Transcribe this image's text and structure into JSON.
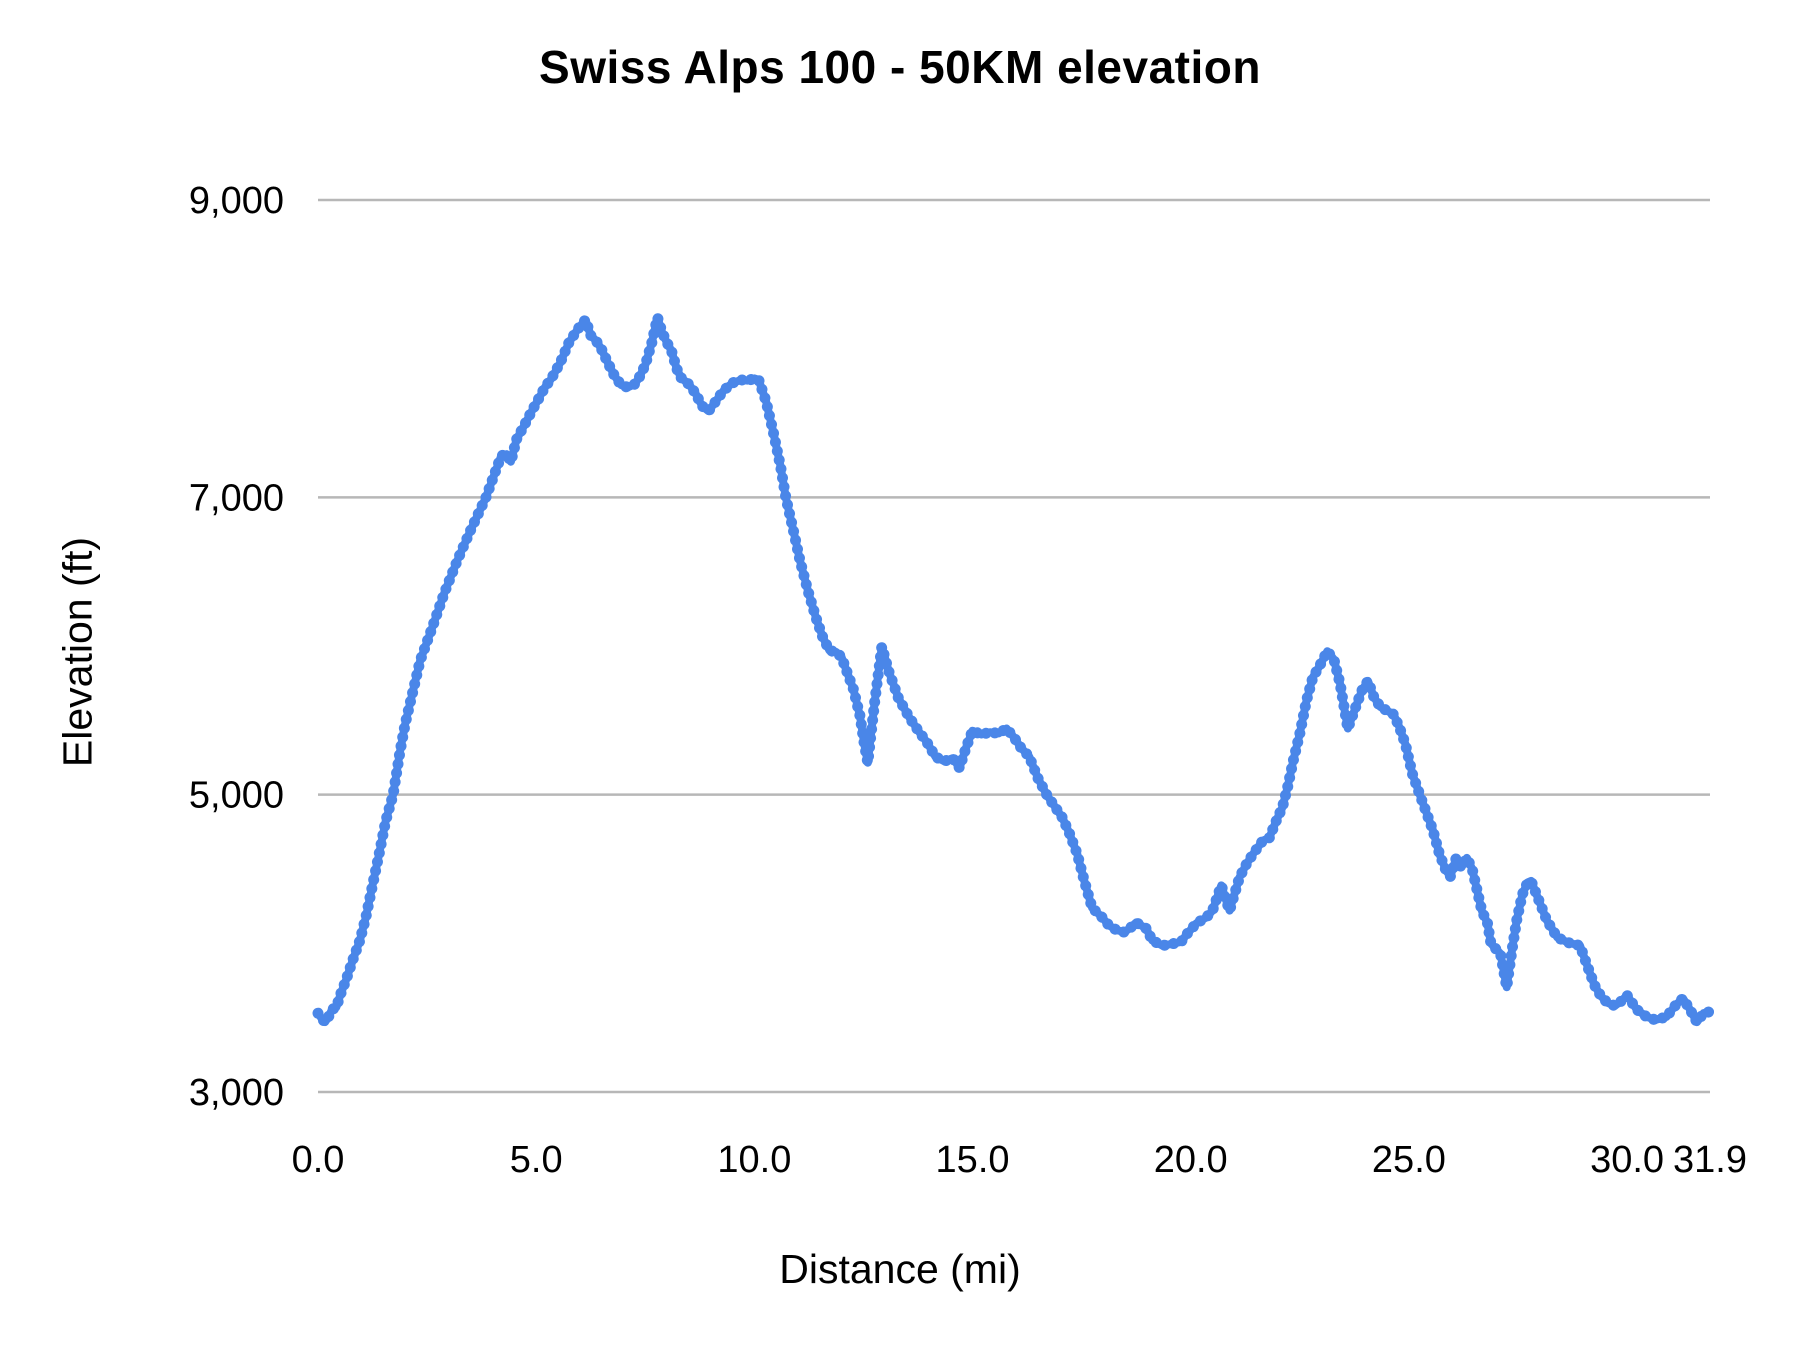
{
  "chart_data": {
    "type": "line",
    "title": "Swiss Alps 100 - 50KM elevation",
    "xlabel": "Distance (mi)",
    "ylabel": "Elevation (ft)",
    "x_range": [
      0,
      31.9
    ],
    "y_range": [
      3000,
      9000
    ],
    "grid": "horizontal-only",
    "legend": "none",
    "line_color": "#4a86e8",
    "gridline_color": "#b7b7b7",
    "x_ticks": [
      {
        "value": 0.0,
        "label": "0.0"
      },
      {
        "value": 5.0,
        "label": "5.0"
      },
      {
        "value": 10.0,
        "label": "10.0"
      },
      {
        "value": 15.0,
        "label": "15.0"
      },
      {
        "value": 20.0,
        "label": "20.0"
      },
      {
        "value": 25.0,
        "label": "25.0"
      },
      {
        "value": 30.0,
        "label": "30.0"
      },
      {
        "value": 31.9,
        "label": "31.9"
      }
    ],
    "y_ticks": [
      {
        "value": 3000,
        "label": "3,000"
      },
      {
        "value": 5000,
        "label": "5,000"
      },
      {
        "value": 7000,
        "label": "7,000"
      },
      {
        "value": 9000,
        "label": "9,000"
      }
    ],
    "series": [
      {
        "name": "Elevation",
        "points": [
          [
            0.0,
            3530
          ],
          [
            0.08,
            3495
          ],
          [
            0.16,
            3470
          ],
          [
            0.24,
            3505
          ],
          [
            0.32,
            3555
          ],
          [
            0.42,
            3570
          ],
          [
            0.52,
            3660
          ],
          [
            0.65,
            3760
          ],
          [
            0.8,
            3890
          ],
          [
            0.96,
            4020
          ],
          [
            1.1,
            4180
          ],
          [
            1.25,
            4390
          ],
          [
            1.4,
            4600
          ],
          [
            1.55,
            4820
          ],
          [
            1.72,
            5000
          ],
          [
            1.88,
            5290
          ],
          [
            2.0,
            5480
          ],
          [
            2.18,
            5700
          ],
          [
            2.34,
            5900
          ],
          [
            2.6,
            6110
          ],
          [
            2.9,
            6360
          ],
          [
            3.2,
            6580
          ],
          [
            3.5,
            6780
          ],
          [
            3.85,
            7000
          ],
          [
            4.05,
            7160
          ],
          [
            4.2,
            7280
          ],
          [
            4.32,
            7290
          ],
          [
            4.42,
            7240
          ],
          [
            4.55,
            7390
          ],
          [
            4.7,
            7470
          ],
          [
            4.9,
            7580
          ],
          [
            5.05,
            7660
          ],
          [
            5.2,
            7740
          ],
          [
            5.35,
            7800
          ],
          [
            5.55,
            7905
          ],
          [
            5.75,
            8040
          ],
          [
            5.95,
            8130
          ],
          [
            6.13,
            8195
          ],
          [
            6.25,
            8090
          ],
          [
            6.38,
            8050
          ],
          [
            6.5,
            7995
          ],
          [
            6.65,
            7900
          ],
          [
            6.8,
            7815
          ],
          [
            6.95,
            7755
          ],
          [
            7.1,
            7740
          ],
          [
            7.25,
            7760
          ],
          [
            7.35,
            7800
          ],
          [
            7.5,
            7890
          ],
          [
            7.65,
            8040
          ],
          [
            7.78,
            8210
          ],
          [
            7.88,
            8115
          ],
          [
            7.98,
            8050
          ],
          [
            8.1,
            7985
          ],
          [
            8.22,
            7865
          ],
          [
            8.32,
            7805
          ],
          [
            8.5,
            7760
          ],
          [
            8.65,
            7700
          ],
          [
            8.8,
            7615
          ],
          [
            8.95,
            7580
          ],
          [
            9.1,
            7640
          ],
          [
            9.3,
            7720
          ],
          [
            9.5,
            7770
          ],
          [
            9.7,
            7790
          ],
          [
            9.85,
            7785
          ],
          [
            10.0,
            7800
          ],
          [
            10.1,
            7790
          ],
          [
            10.27,
            7645
          ],
          [
            10.43,
            7445
          ],
          [
            10.6,
            7210
          ],
          [
            10.72,
            7000
          ],
          [
            10.9,
            6770
          ],
          [
            11.05,
            6570
          ],
          [
            11.22,
            6380
          ],
          [
            11.4,
            6200
          ],
          [
            11.56,
            6065
          ],
          [
            11.72,
            5970
          ],
          [
            11.87,
            5960
          ],
          [
            12.0,
            5925
          ],
          [
            12.13,
            5820
          ],
          [
            12.27,
            5710
          ],
          [
            12.42,
            5530
          ],
          [
            12.52,
            5340
          ],
          [
            12.6,
            5215
          ],
          [
            12.76,
            5630
          ],
          [
            12.92,
            5995
          ],
          [
            13.08,
            5830
          ],
          [
            13.3,
            5650
          ],
          [
            13.55,
            5520
          ],
          [
            13.78,
            5420
          ],
          [
            13.95,
            5355
          ],
          [
            14.15,
            5255
          ],
          [
            14.35,
            5225
          ],
          [
            14.55,
            5245
          ],
          [
            14.7,
            5180
          ],
          [
            14.85,
            5315
          ],
          [
            15.0,
            5430
          ],
          [
            15.2,
            5405
          ],
          [
            15.4,
            5420
          ],
          [
            15.6,
            5412
          ],
          [
            15.78,
            5445
          ],
          [
            15.95,
            5385
          ],
          [
            16.1,
            5320
          ],
          [
            16.3,
            5255
          ],
          [
            16.5,
            5110
          ],
          [
            16.7,
            5000
          ],
          [
            17.06,
            4845
          ],
          [
            17.22,
            4740
          ],
          [
            17.4,
            4600
          ],
          [
            17.56,
            4420
          ],
          [
            17.74,
            4240
          ],
          [
            17.97,
            4175
          ],
          [
            18.13,
            4120
          ],
          [
            18.3,
            4090
          ],
          [
            18.48,
            4075
          ],
          [
            18.62,
            4105
          ],
          [
            18.75,
            4140
          ],
          [
            18.98,
            4100
          ],
          [
            19.12,
            4020
          ],
          [
            19.35,
            3985
          ],
          [
            19.55,
            3995
          ],
          [
            19.78,
            4010
          ],
          [
            19.92,
            4065
          ],
          [
            20.13,
            4135
          ],
          [
            20.36,
            4175
          ],
          [
            20.5,
            4220
          ],
          [
            20.63,
            4330
          ],
          [
            20.7,
            4390
          ],
          [
            20.8,
            4300
          ],
          [
            20.89,
            4220
          ],
          [
            21.0,
            4330
          ],
          [
            21.12,
            4445
          ],
          [
            21.28,
            4535
          ],
          [
            21.45,
            4610
          ],
          [
            21.65,
            4690
          ],
          [
            21.8,
            4710
          ],
          [
            21.96,
            4825
          ],
          [
            22.1,
            4915
          ],
          [
            22.22,
            5050
          ],
          [
            22.35,
            5230
          ],
          [
            22.5,
            5410
          ],
          [
            22.65,
            5630
          ],
          [
            22.8,
            5790
          ],
          [
            22.95,
            5865
          ],
          [
            23.13,
            5965
          ],
          [
            23.28,
            5910
          ],
          [
            23.42,
            5750
          ],
          [
            23.6,
            5445
          ],
          [
            23.75,
            5565
          ],
          [
            23.92,
            5700
          ],
          [
            24.06,
            5765
          ],
          [
            24.2,
            5655
          ],
          [
            24.35,
            5590
          ],
          [
            24.5,
            5565
          ],
          [
            24.65,
            5540
          ],
          [
            24.78,
            5455
          ],
          [
            24.92,
            5340
          ],
          [
            25.08,
            5140
          ],
          [
            25.25,
            5000
          ],
          [
            25.4,
            4880
          ],
          [
            25.55,
            4760
          ],
          [
            25.7,
            4600
          ],
          [
            25.85,
            4490
          ],
          [
            25.95,
            4450
          ],
          [
            26.08,
            4570
          ],
          [
            26.2,
            4510
          ],
          [
            26.33,
            4575
          ],
          [
            26.45,
            4500
          ],
          [
            26.55,
            4375
          ],
          [
            26.67,
            4220
          ],
          [
            26.8,
            4135
          ],
          [
            26.88,
            4000
          ],
          [
            27.0,
            3960
          ],
          [
            27.1,
            3930
          ],
          [
            27.24,
            3705
          ],
          [
            27.36,
            3950
          ],
          [
            27.47,
            4155
          ],
          [
            27.6,
            4330
          ],
          [
            27.72,
            4410
          ],
          [
            27.8,
            4420
          ],
          [
            27.95,
            4310
          ],
          [
            28.16,
            4155
          ],
          [
            28.4,
            4040
          ],
          [
            28.65,
            4005
          ],
          [
            28.92,
            3985
          ],
          [
            29.1,
            3840
          ],
          [
            29.25,
            3720
          ],
          [
            29.4,
            3645
          ],
          [
            29.55,
            3600
          ],
          [
            29.72,
            3580
          ],
          [
            29.86,
            3610
          ],
          [
            30.0,
            3650
          ],
          [
            30.22,
            3555
          ],
          [
            30.45,
            3505
          ],
          [
            30.65,
            3485
          ],
          [
            30.9,
            3505
          ],
          [
            31.1,
            3580
          ],
          [
            31.28,
            3630
          ],
          [
            31.45,
            3550
          ],
          [
            31.6,
            3470
          ],
          [
            31.75,
            3530
          ],
          [
            31.9,
            3540
          ]
        ]
      }
    ]
  }
}
